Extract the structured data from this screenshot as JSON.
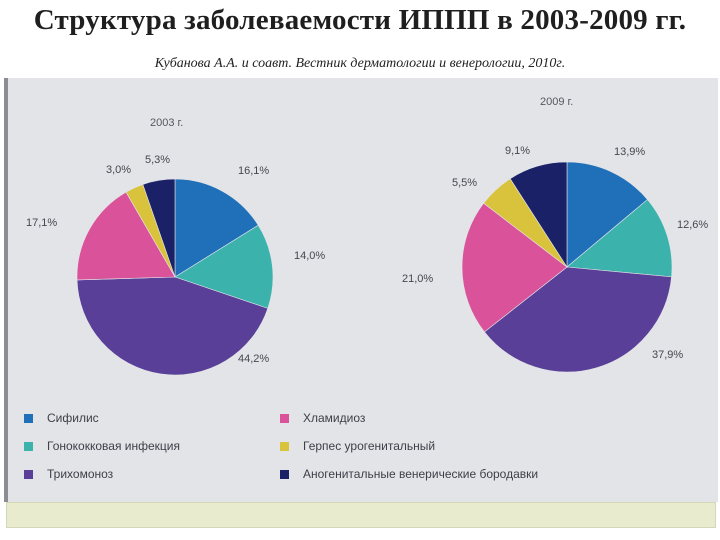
{
  "title": "Структура заболеваемости ИППП в 2003-2009 гг.",
  "subtitle": "Кубанова А.А. и соавт. Вестник дерматологии и венерологии, 2010г.",
  "chart_data": [
    {
      "type": "pie",
      "title": "2003 г.",
      "slices": [
        {
          "category": "Сифилис",
          "value": 16.1,
          "label": "16,1%",
          "color": "#1f6fb9"
        },
        {
          "category": "Гонококковая инфекция",
          "value": 14.0,
          "label": "14,0%",
          "color": "#3bb3ac"
        },
        {
          "category": "Трихомоноз",
          "value": 44.2,
          "label": "44,2%",
          "color": "#5a3f98"
        },
        {
          "category": "Хламидиоз",
          "value": 17.1,
          "label": "17,1%",
          "color": "#d9529a"
        },
        {
          "category": "Герпес урогенитальный",
          "value": 3.0,
          "label": "3,0%",
          "color": "#d9c33c"
        },
        {
          "category": "Аногенитальные венерические бородавки",
          "value": 5.3,
          "label": "5,3%",
          "color": "#1a2166"
        }
      ]
    },
    {
      "type": "pie",
      "title": "2009 г.",
      "slices": [
        {
          "category": "Сифилис",
          "value": 13.9,
          "label": "13,9%",
          "color": "#1f6fb9"
        },
        {
          "category": "Гонококковая инфекция",
          "value": 12.6,
          "label": "12,6%",
          "color": "#3bb3ac"
        },
        {
          "category": "Трихомоноз",
          "value": 37.9,
          "label": "37,9%",
          "color": "#5a3f98"
        },
        {
          "category": "Хламидиоз",
          "value": 21.0,
          "label": "21,0%",
          "color": "#d9529a"
        },
        {
          "category": "Герпес урогенитальный",
          "value": 5.5,
          "label": "5,5%",
          "color": "#d9c33c"
        },
        {
          "category": "Аногенитальные венерические бородавки",
          "value": 9.1,
          "label": "9,1%",
          "color": "#1a2166"
        }
      ]
    }
  ],
  "legend": [
    {
      "label": "Сифилис",
      "color": "#1f6fb9"
    },
    {
      "label": "Хламидиоз",
      "color": "#d9529a"
    },
    {
      "label": "Гонококковая инфекция",
      "color": "#3bb3ac"
    },
    {
      "label": "Герпес урогенитальный",
      "color": "#d9c33c"
    },
    {
      "label": "Трихомоноз",
      "color": "#5a3f98"
    },
    {
      "label": "Аногенитальные венерические бородавки",
      "color": "#1a2166"
    }
  ]
}
